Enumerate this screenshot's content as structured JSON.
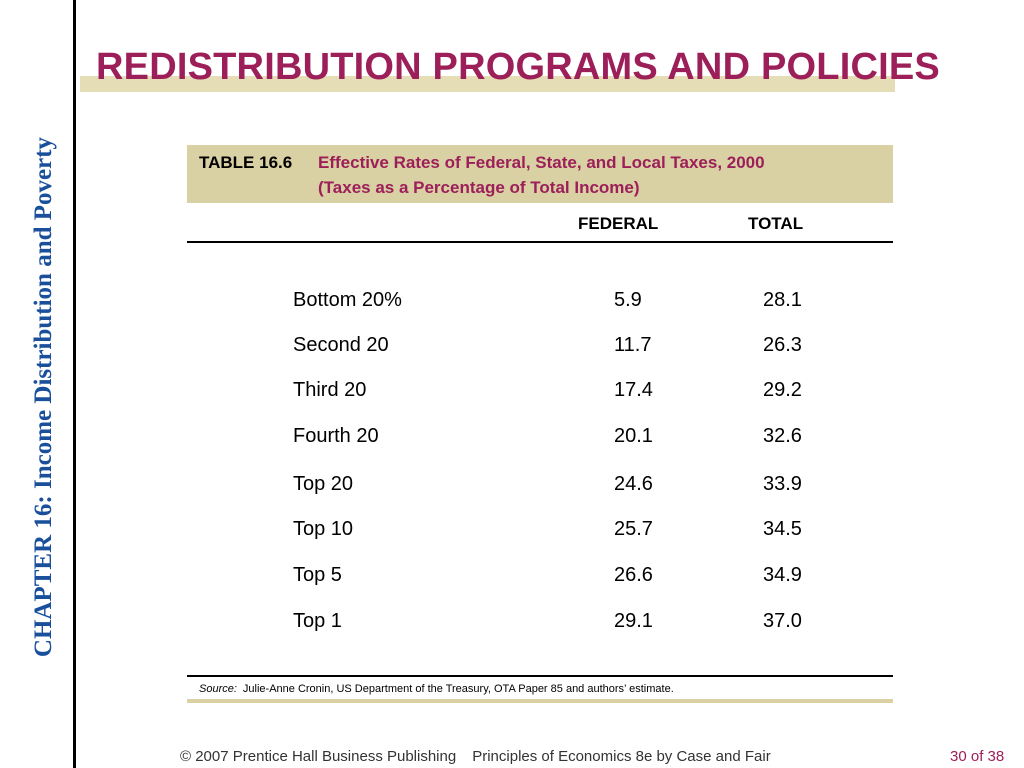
{
  "sidebar": {
    "chapter": "CHAPTER 16:  Income Distribution and Poverty"
  },
  "title": "REDISTRIBUTION PROGRAMS AND POLICIES",
  "table": {
    "number": "TABLE 16.6",
    "caption_line1": "Effective Rates of Federal, State, and Local Taxes, 2000",
    "caption_line2": "(Taxes as a Percentage of Total Income)",
    "columns": {
      "federal": "FEDERAL",
      "total": "TOTAL"
    },
    "rows": [
      {
        "label": "Bottom 20%",
        "federal": "5.9",
        "total": "28.1"
      },
      {
        "label": "Second 20",
        "federal": "11.7",
        "total": "26.3"
      },
      {
        "label": "Third 20",
        "federal": "17.4",
        "total": "29.2"
      },
      {
        "label": "Fourth 20",
        "federal": "20.1",
        "total": "32.6"
      },
      {
        "label": "Top 20",
        "federal": "24.6",
        "total": "33.9"
      },
      {
        "label": "Top 10",
        "federal": "25.7",
        "total": "34.5"
      },
      {
        "label": "Top 5",
        "federal": "26.6",
        "total": "34.9"
      },
      {
        "label": "Top 1",
        "federal": "29.1",
        "total": "37.0"
      }
    ],
    "source_label": "Source:",
    "source_text": "Julie-Anne Cronin, US Department of the Treasury, OTA Paper 85 and authors’ estimate."
  },
  "footer": {
    "copyright": "© 2007 Prentice Hall Business Publishing",
    "book": "Principles of Economics 8e by Case and Fair",
    "page": "30 of 38"
  }
}
